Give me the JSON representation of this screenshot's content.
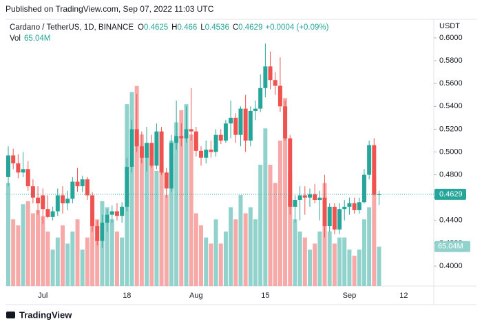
{
  "header": {
    "published": "Published on TradingView.com, Sep 07, 2022 11:03 UTC",
    "footer_brand": "TradingView"
  },
  "chart_data": {
    "type": "candlestick",
    "legend": {
      "symbol": "Cardano / TetherUS, 1D, BINANCE",
      "ohlc_labels": [
        "O",
        "H",
        "L",
        "C"
      ],
      "change": "+0.0004 (+0.09%)",
      "volume_title": "Vol"
    },
    "currency": "USDT",
    "categories": [
      null,
      null,
      null,
      null,
      null,
      null,
      null,
      "Jul",
      null,
      null,
      null,
      null,
      null,
      null,
      null,
      null,
      null,
      null,
      null,
      null,
      null,
      null,
      null,
      null,
      "18",
      null,
      null,
      null,
      null,
      null,
      null,
      null,
      null,
      null,
      null,
      null,
      null,
      null,
      "Aug",
      null,
      null,
      null,
      null,
      null,
      null,
      null,
      null,
      null,
      null,
      null,
      null,
      null,
      "15",
      null,
      null,
      null,
      null,
      null,
      null,
      null,
      null,
      null,
      null,
      null,
      null,
      null,
      null,
      null,
      null,
      "Sep",
      null,
      null,
      null,
      null,
      null,
      null
    ],
    "extra_x_labels": [
      {
        "value": 80,
        "label": "12"
      }
    ],
    "open": [
      0.478,
      0.497,
      0.49,
      0.482,
      0.485,
      0.47,
      0.46,
      0.462,
      0.45,
      0.443,
      0.448,
      0.462,
      0.455,
      0.459,
      0.474,
      0.47,
      0.476,
      0.462,
      0.435,
      0.422,
      0.438,
      0.445,
      0.448,
      0.444,
      0.452,
      0.487,
      0.52,
      0.505,
      0.495,
      0.508,
      0.488,
      0.518,
      0.482,
      0.468,
      0.508,
      0.514,
      0.512,
      0.52,
      0.518,
      0.501,
      0.495,
      0.502,
      0.5,
      0.515,
      0.51,
      0.525,
      0.53,
      0.515,
      0.538,
      0.51,
      0.536,
      0.538,
      0.556,
      0.575,
      0.563,
      0.558,
      0.54,
      0.512,
      0.452,
      0.458,
      0.462,
      0.46,
      0.463,
      0.458,
      0.46,
      0.435,
      0.452,
      0.432,
      0.45,
      0.452,
      0.455,
      0.449,
      0.456,
      0.48,
      0.506,
      0.4625
    ],
    "high": [
      0.505,
      0.503,
      0.498,
      0.5,
      0.492,
      0.476,
      0.47,
      0.468,
      0.462,
      0.452,
      0.468,
      0.47,
      0.466,
      0.478,
      0.486,
      0.479,
      0.478,
      0.465,
      0.44,
      0.445,
      0.45,
      0.453,
      0.455,
      0.456,
      0.495,
      0.528,
      0.551,
      0.518,
      0.522,
      0.515,
      0.525,
      0.522,
      0.486,
      0.515,
      0.545,
      0.525,
      0.54,
      0.556,
      0.522,
      0.505,
      0.51,
      0.51,
      0.52,
      0.52,
      0.528,
      0.545,
      0.534,
      0.54,
      0.55,
      0.54,
      0.545,
      0.568,
      0.595,
      0.588,
      0.57,
      0.583,
      0.545,
      0.515,
      0.462,
      0.47,
      0.47,
      0.468,
      0.472,
      0.466,
      0.48,
      0.455,
      0.455,
      0.455,
      0.458,
      0.46,
      0.46,
      0.46,
      0.485,
      0.51,
      0.512,
      0.466
    ],
    "low": [
      0.47,
      0.485,
      0.477,
      0.478,
      0.466,
      0.455,
      0.445,
      0.437,
      0.442,
      0.44,
      0.444,
      0.446,
      0.449,
      0.455,
      0.465,
      0.465,
      0.458,
      0.43,
      0.418,
      0.416,
      0.43,
      0.438,
      0.44,
      0.438,
      0.448,
      0.482,
      0.5,
      0.49,
      0.483,
      0.486,
      0.485,
      0.48,
      0.46,
      0.465,
      0.502,
      0.505,
      0.508,
      0.51,
      0.496,
      0.488,
      0.49,
      0.495,
      0.496,
      0.507,
      0.508,
      0.512,
      0.508,
      0.505,
      0.5,
      0.505,
      0.528,
      0.535,
      0.548,
      0.555,
      0.55,
      0.535,
      0.51,
      0.445,
      0.438,
      0.44,
      0.445,
      0.452,
      0.455,
      0.44,
      0.425,
      0.43,
      0.428,
      0.428,
      0.44,
      0.445,
      0.446,
      0.446,
      0.455,
      0.476,
      0.462,
      0.4536
    ],
    "close": [
      0.497,
      0.49,
      0.482,
      0.485,
      0.47,
      0.46,
      0.455,
      0.45,
      0.443,
      0.448,
      0.462,
      0.455,
      0.459,
      0.474,
      0.47,
      0.476,
      0.462,
      0.435,
      0.422,
      0.438,
      0.445,
      0.448,
      0.444,
      0.452,
      0.487,
      0.52,
      0.505,
      0.495,
      0.508,
      0.488,
      0.518,
      0.482,
      0.468,
      0.508,
      0.514,
      0.512,
      0.52,
      0.518,
      0.501,
      0.495,
      0.502,
      0.5,
      0.515,
      0.51,
      0.525,
      0.53,
      0.515,
      0.538,
      0.51,
      0.536,
      0.538,
      0.556,
      0.575,
      0.563,
      0.558,
      0.54,
      0.512,
      0.452,
      0.458,
      0.462,
      0.46,
      0.463,
      0.458,
      0.46,
      0.435,
      0.452,
      0.432,
      0.45,
      0.452,
      0.455,
      0.449,
      0.456,
      0.48,
      0.506,
      0.4625,
      0.4629
    ],
    "volume": [
      170,
      110,
      100,
      135,
      140,
      120,
      125,
      115,
      90,
      60,
      80,
      100,
      70,
      90,
      110,
      60,
      80,
      120,
      110,
      140,
      130,
      110,
      90,
      80,
      300,
      320,
      330,
      250,
      230,
      200,
      190,
      200,
      150,
      240,
      270,
      290,
      300,
      250,
      120,
      100,
      80,
      70,
      110,
      70,
      90,
      130,
      110,
      150,
      120,
      130,
      110,
      200,
      260,
      200,
      170,
      240,
      310,
      190,
      110,
      90,
      80,
      60,
      70,
      90,
      170,
      90,
      70,
      80,
      80,
      60,
      50,
      60,
      110,
      130,
      180,
      65.04
    ],
    "volume_last_label": "65.04M",
    "volume_lim": [
      0,
      440
    ],
    "ylim": [
      0.3825,
      0.6163
    ],
    "yticks": [
      {
        "value": 0.4,
        "label": "0.4000"
      },
      {
        "value": 0.42,
        "label": "0.4200"
      },
      {
        "value": 0.44,
        "label": "0.4400"
      },
      {
        "value": 0.46,
        "label": "0.4600"
      },
      {
        "value": 0.48,
        "label": "0.4800"
      },
      {
        "value": 0.5,
        "label": "0.5000"
      },
      {
        "value": 0.52,
        "label": "0.5200"
      },
      {
        "value": 0.54,
        "label": "0.5400"
      },
      {
        "value": 0.56,
        "label": "0.5600"
      },
      {
        "value": 0.58,
        "label": "0.5800"
      },
      {
        "value": 0.6,
        "label": "0.6000"
      }
    ],
    "up_color": "#26a69a",
    "down_color": "#ef5350",
    "volume_up_color": "#92d2cc",
    "volume_down_color": "#f7a9a7",
    "last_price_line": true
  }
}
